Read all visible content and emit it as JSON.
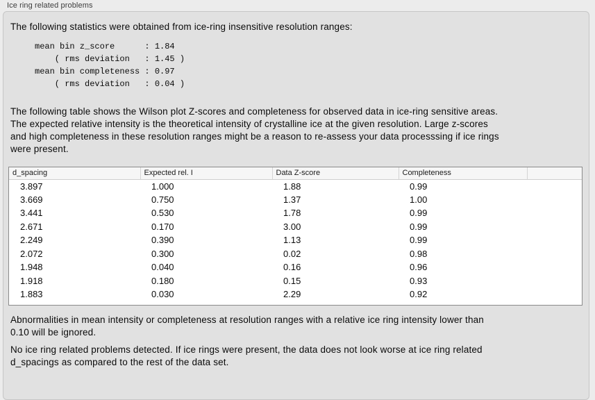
{
  "panel": {
    "title": "Ice ring related problems"
  },
  "intro": "The following statistics were obtained from ice-ring insensitive resolution ranges:",
  "stats_block": "mean bin z_score      : 1.84\n    ( rms deviation   : 1.45 )\nmean bin completeness : 0.97\n    ( rms deviation   : 0.04 )",
  "stats": {
    "mean_bin_z_score": "1.84",
    "z_score_rms_deviation": "1.45",
    "mean_bin_completeness": "0.97",
    "completeness_rms_deviation": "0.04"
  },
  "description": "The following table shows the Wilson plot Z-scores and completeness for observed data in ice-ring sensitive areas.\nThe expected relative intensity is the theoretical intensity of crystalline ice at the given resolution. Large z-scores\nand high completeness in these resolution ranges might be a reason to re-assess your data processsing if ice rings\nwere present.",
  "table": {
    "columns": [
      "d_spacing",
      "Expected rel. I",
      "Data Z-score",
      "Completeness"
    ],
    "rows": [
      [
        "3.897",
        "1.000",
        "1.88",
        "0.99"
      ],
      [
        "3.669",
        "0.750",
        "1.37",
        "1.00"
      ],
      [
        "3.441",
        "0.530",
        "1.78",
        "0.99"
      ],
      [
        "2.671",
        "0.170",
        "3.00",
        "0.99"
      ],
      [
        "2.249",
        "0.390",
        "1.13",
        "0.99"
      ],
      [
        "2.072",
        "0.300",
        "0.02",
        "0.98"
      ],
      [
        "1.948",
        "0.040",
        "0.16",
        "0.96"
      ],
      [
        "1.918",
        "0.180",
        "0.15",
        "0.93"
      ],
      [
        "1.883",
        "0.030",
        "2.29",
        "0.92"
      ]
    ]
  },
  "note_ignore": "Abnormalities in mean intensity or completeness at resolution ranges with a relative ice ring intensity lower than\n0.10 will be ignored.",
  "conclusion": "No ice ring related problems detected. If ice rings were present, the data does not look worse at ice ring related\nd_spacings as compared to the rest of the data set.",
  "colors": {
    "outer_background": "#ececec",
    "panel_background": "#e1e1e1",
    "panel_border": "#c6c6c6",
    "table_border": "#8a8a8a",
    "table_header_background": "#f6f6f6",
    "text": "#0a0a0a"
  }
}
